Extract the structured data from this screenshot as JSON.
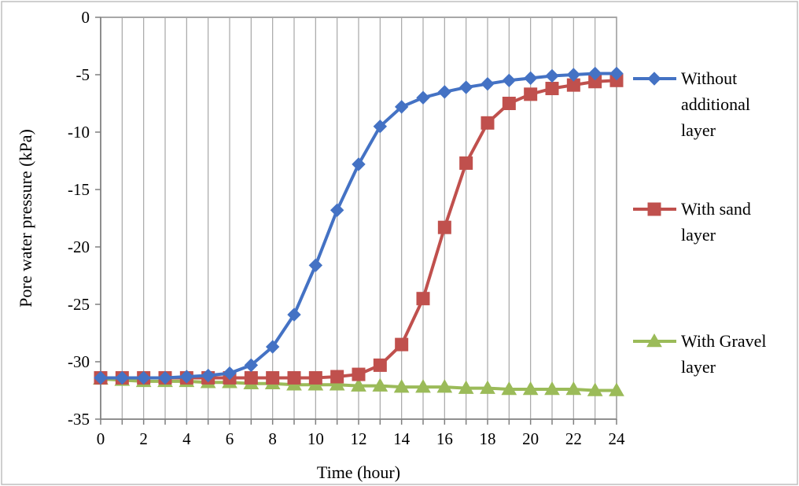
{
  "chart_data": {
    "type": "line",
    "xlabel": "Time (hour)",
    "ylabel": "Pore water pressure (kPa)",
    "xlim": [
      0,
      24
    ],
    "ylim": [
      -35,
      0
    ],
    "x_ticks": [
      0,
      2,
      4,
      6,
      8,
      10,
      12,
      14,
      16,
      18,
      20,
      22,
      24
    ],
    "y_ticks": [
      0,
      -5,
      -10,
      -15,
      -20,
      -25,
      -30,
      -35
    ],
    "grid": "vertical",
    "legend_position": "right",
    "x": [
      0,
      1,
      2,
      3,
      4,
      5,
      6,
      7,
      8,
      9,
      10,
      11,
      12,
      13,
      14,
      15,
      16,
      17,
      18,
      19,
      20,
      21,
      22,
      23,
      24
    ],
    "series": [
      {
        "name_lines": [
          "Without",
          "additional",
          "layer"
        ],
        "color": "#4472C4",
        "marker": "diamond",
        "values": [
          -31.4,
          -31.4,
          -31.4,
          -31.4,
          -31.3,
          -31.2,
          -31.0,
          -30.3,
          -28.7,
          -25.9,
          -21.6,
          -16.8,
          -12.8,
          -9.5,
          -7.8,
          -7.0,
          -6.5,
          -6.1,
          -5.8,
          -5.5,
          -5.3,
          -5.1,
          -5.0,
          -4.9,
          -4.9
        ]
      },
      {
        "name_lines": [
          "With sand",
          "layer"
        ],
        "color": "#C0504D",
        "marker": "square",
        "values": [
          -31.4,
          -31.4,
          -31.4,
          -31.4,
          -31.4,
          -31.4,
          -31.4,
          -31.4,
          -31.4,
          -31.4,
          -31.4,
          -31.3,
          -31.1,
          -30.3,
          -28.5,
          -24.5,
          -18.3,
          -12.7,
          -9.2,
          -7.5,
          -6.7,
          -6.2,
          -5.9,
          -5.6,
          -5.5
        ]
      },
      {
        "name_lines": [
          "With Gravel",
          "layer"
        ],
        "color": "#9BBB59",
        "marker": "triangle",
        "values": [
          -31.5,
          -31.6,
          -31.7,
          -31.7,
          -31.7,
          -31.8,
          -31.8,
          -31.9,
          -31.9,
          -32.0,
          -32.0,
          -32.0,
          -32.1,
          -32.1,
          -32.2,
          -32.2,
          -32.2,
          -32.3,
          -32.3,
          -32.4,
          -32.4,
          -32.4,
          -32.4,
          -32.5,
          -32.5
        ]
      }
    ]
  }
}
